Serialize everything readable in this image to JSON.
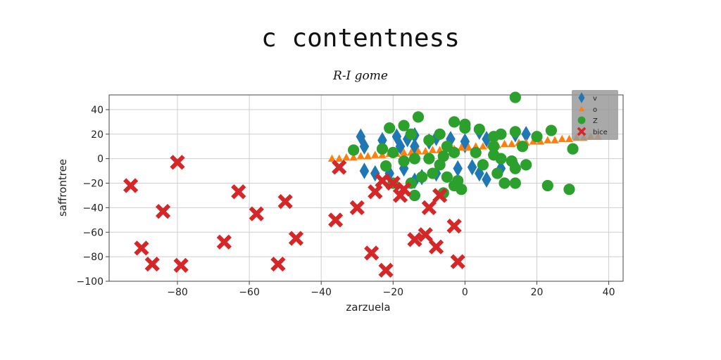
{
  "chart_data": {
    "type": "scatter",
    "title": "c contentness",
    "subtitle": "R-I gome",
    "xlabel": "zarzuela",
    "ylabel": "saffrontree",
    "xlim": [
      -99,
      44
    ],
    "ylim": [
      -100,
      52
    ],
    "xticks": [
      -80,
      -60,
      -40,
      -20,
      0,
      20,
      40
    ],
    "yticks": [
      -100,
      -80,
      -60,
      -40,
      -20,
      0,
      20,
      40
    ],
    "grid": true,
    "legend_position": "top-right",
    "series": [
      {
        "name": "v",
        "color": "#1f77b4",
        "marker": "diamond",
        "points": [
          [
            -29,
            18
          ],
          [
            -28,
            10
          ],
          [
            -23,
            15
          ],
          [
            -19,
            18
          ],
          [
            -16,
            16
          ],
          [
            -14,
            19
          ],
          [
            -8,
            17
          ],
          [
            -4,
            16
          ],
          [
            0,
            14
          ],
          [
            4,
            22
          ],
          [
            6,
            16
          ],
          [
            14,
            20
          ],
          [
            17,
            20
          ],
          [
            -28,
            -10
          ],
          [
            -25,
            -12
          ],
          [
            -21,
            -12
          ],
          [
            -17,
            -8
          ],
          [
            -14,
            -18
          ],
          [
            -12,
            -15
          ],
          [
            -8,
            -12
          ],
          [
            -2,
            -8
          ],
          [
            2,
            -7
          ],
          [
            4,
            -12
          ],
          [
            6,
            -17
          ],
          [
            10,
            -8
          ],
          [
            14,
            -6
          ],
          [
            -14,
            10
          ],
          [
            -10,
            14
          ],
          [
            0,
            11
          ],
          [
            -18,
            10
          ]
        ]
      },
      {
        "name": "o",
        "color": "#ff7f0e",
        "marker": "triangle",
        "points": [
          [
            -37,
            0
          ],
          [
            -35,
            0
          ],
          [
            -33,
            1
          ],
          [
            -31,
            1
          ],
          [
            -29,
            2
          ],
          [
            -27,
            2
          ],
          [
            -25,
            3
          ],
          [
            -23,
            3
          ],
          [
            -21,
            4
          ],
          [
            -19,
            4
          ],
          [
            -17,
            5
          ],
          [
            -15,
            5
          ],
          [
            -13,
            6
          ],
          [
            -11,
            6
          ],
          [
            -9,
            7
          ],
          [
            -7,
            7
          ],
          [
            -5,
            8
          ],
          [
            -3,
            8
          ],
          [
            -1,
            9
          ],
          [
            1,
            9
          ],
          [
            3,
            10
          ],
          [
            5,
            10
          ],
          [
            7,
            11
          ],
          [
            9,
            11
          ],
          [
            11,
            12
          ],
          [
            13,
            12
          ],
          [
            15,
            13
          ],
          [
            17,
            13
          ],
          [
            19,
            14
          ],
          [
            21,
            14
          ],
          [
            23,
            15
          ],
          [
            25,
            15
          ],
          [
            27,
            16
          ],
          [
            29,
            16
          ],
          [
            31,
            17
          ],
          [
            33,
            17
          ],
          [
            35,
            18
          ],
          [
            37,
            18
          ]
        ]
      },
      {
        "name": "Z",
        "color": "#2ca02c",
        "marker": "circle",
        "points": [
          [
            14,
            50
          ],
          [
            -13,
            34
          ],
          [
            -17,
            27
          ],
          [
            -21,
            25
          ],
          [
            -3,
            30
          ],
          [
            0,
            28
          ],
          [
            -7,
            20
          ],
          [
            -15,
            20
          ],
          [
            -10,
            15
          ],
          [
            -5,
            10
          ],
          [
            0,
            25
          ],
          [
            4,
            24
          ],
          [
            8,
            18
          ],
          [
            10,
            20
          ],
          [
            14,
            22
          ],
          [
            -23,
            8
          ],
          [
            -31,
            7
          ],
          [
            -20,
            5
          ],
          [
            -14,
            0
          ],
          [
            -10,
            0
          ],
          [
            -6,
            2
          ],
          [
            -3,
            5
          ],
          [
            3,
            5
          ],
          [
            8,
            3
          ],
          [
            10,
            0
          ],
          [
            13,
            -2
          ],
          [
            16,
            10
          ],
          [
            30,
            8
          ],
          [
            -20,
            -20
          ],
          [
            -15,
            -20
          ],
          [
            -12,
            -15
          ],
          [
            -9,
            -12
          ],
          [
            -5,
            -15
          ],
          [
            -3,
            -22
          ],
          [
            -1,
            -25
          ],
          [
            5,
            -5
          ],
          [
            9,
            -12
          ],
          [
            11,
            -20
          ],
          [
            14,
            -20
          ],
          [
            17,
            -5
          ],
          [
            23,
            -22
          ],
          [
            29,
            -25
          ],
          [
            -14,
            -30
          ],
          [
            -6,
            -28
          ],
          [
            -2,
            -18
          ],
          [
            -7,
            -5
          ],
          [
            -17,
            -2
          ],
          [
            -22,
            -6
          ],
          [
            14,
            -8
          ],
          [
            20,
            18
          ],
          [
            24,
            23
          ],
          [
            8,
            10
          ]
        ]
      },
      {
        "name": "bice",
        "color": "#d62728",
        "marker": "x",
        "points": [
          [
            -93,
            -22
          ],
          [
            -80,
            -3
          ],
          [
            -84,
            -43
          ],
          [
            -90,
            -73
          ],
          [
            -87,
            -86
          ],
          [
            -79,
            -87
          ],
          [
            -63,
            -27
          ],
          [
            -58,
            -45
          ],
          [
            -67,
            -68
          ],
          [
            -50,
            -35
          ],
          [
            -47,
            -65
          ],
          [
            -52,
            -86
          ],
          [
            -35,
            -7
          ],
          [
            -36,
            -50
          ],
          [
            -30,
            -40
          ],
          [
            -25,
            -27
          ],
          [
            -23,
            -18
          ],
          [
            -20,
            -20
          ],
          [
            -17,
            -25
          ],
          [
            -10,
            -40
          ],
          [
            -7,
            -30
          ],
          [
            -11,
            -62
          ],
          [
            -14,
            -66
          ],
          [
            -8,
            -72
          ],
          [
            -3,
            -55
          ],
          [
            -2,
            -84
          ],
          [
            -26,
            -77
          ],
          [
            -22,
            -91
          ],
          [
            -18,
            -30
          ]
        ]
      }
    ]
  }
}
